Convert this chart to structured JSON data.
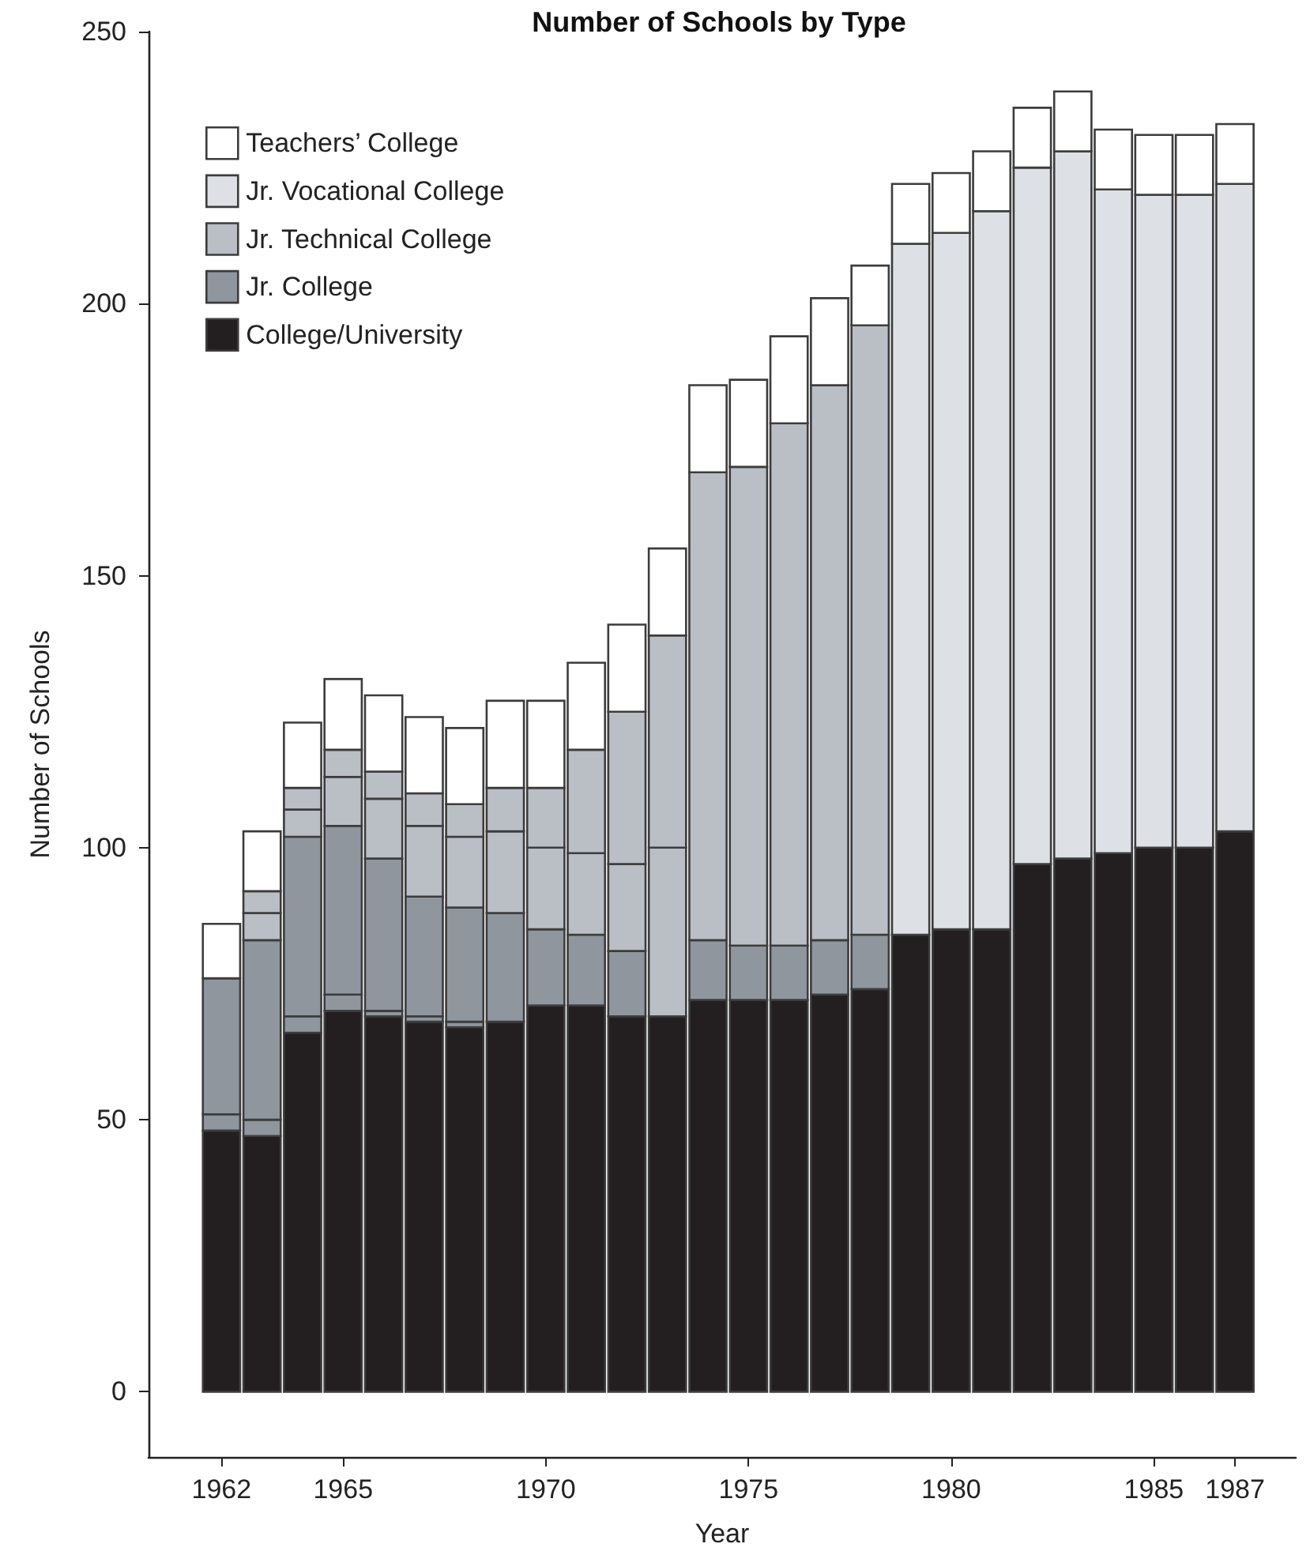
{
  "chart_data": {
    "type": "bar",
    "title": "Number of Schools by Type",
    "xlabel": "Year",
    "ylabel": "Number of Schools",
    "stacked": true,
    "legend": "top left",
    "grid": false,
    "x": [
      1962,
      1963,
      1964,
      1965,
      1966,
      1967,
      1968,
      1969,
      1970,
      1971,
      1972,
      1973,
      1974,
      1975,
      1976,
      1977,
      1978,
      1979,
      1980,
      1981,
      1982,
      1983,
      1984,
      1985,
      1986,
      1987
    ],
    "xlim": [
      1960.2,
      1988.5
    ],
    "xticks": [
      1962,
      1965,
      1970,
      1975,
      1980,
      1985,
      1987
    ],
    "ylim": [
      -12,
      250
    ],
    "yticks": [
      0,
      50,
      100,
      150,
      200,
      250
    ],
    "series": [
      {
        "name": "College/University",
        "color": "#231f20",
        "values": [
          48,
          47,
          66,
          70,
          69,
          68,
          67,
          68,
          71,
          71,
          69,
          69,
          72,
          72,
          72,
          73,
          74,
          84,
          85,
          85,
          97,
          98,
          99,
          100,
          100,
          103
        ]
      },
      {
        "color": "#8f969d",
        "values": [
          3,
          3,
          3,
          3,
          1,
          1,
          1,
          null,
          null,
          null,
          null,
          null,
          null,
          null,
          null,
          null,
          null,
          null,
          null,
          null,
          null,
          null,
          null,
          null,
          null,
          null
        ]
      },
      {
        "name": "Jr. College",
        "color": "#8f969d",
        "values": [
          25,
          33,
          33,
          31,
          28,
          22,
          21,
          20,
          14,
          13,
          12,
          null,
          11,
          10,
          10,
          10,
          10,
          null,
          null,
          null,
          null,
          null,
          null,
          null,
          null,
          null
        ]
      },
      {
        "name": "Jr. Technical College",
        "color": "#babec5",
        "values": [
          null,
          5,
          5,
          9,
          11,
          13,
          13,
          15,
          15,
          15,
          16,
          31,
          86,
          88,
          96,
          102,
          112,
          null,
          null,
          null,
          null,
          null,
          null,
          null,
          null,
          null
        ]
      },
      {
        "color": "#babec5",
        "values": [
          null,
          4,
          4,
          5,
          5,
          6,
          6,
          8,
          11,
          19,
          28,
          39,
          null,
          null,
          null,
          null,
          null,
          null,
          null,
          null,
          null,
          null,
          null,
          null,
          null,
          null
        ]
      },
      {
        "name": "Jr. Vocational College",
        "color": "#dde0e5",
        "values": [
          null,
          null,
          null,
          null,
          null,
          null,
          null,
          null,
          null,
          null,
          null,
          null,
          null,
          null,
          null,
          null,
          null,
          127,
          128,
          132,
          128,
          130,
          122,
          120,
          120,
          119
        ]
      },
      {
        "name": "Teachers’ College",
        "color": "#ffffff",
        "values": [
          10,
          11,
          12,
          13,
          14,
          14,
          14,
          16,
          16,
          16,
          16,
          16,
          16,
          16,
          16,
          16,
          11,
          11,
          11,
          11,
          11,
          11,
          11,
          11,
          11,
          11
        ]
      }
    ]
  }
}
